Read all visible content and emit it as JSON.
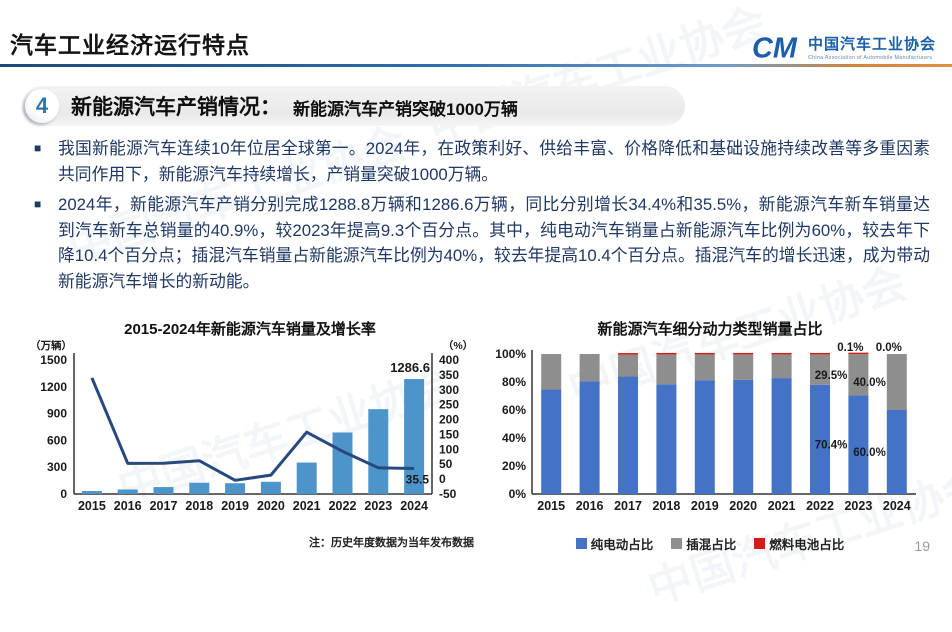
{
  "header": {
    "title": "汽车工业经济运行特点",
    "logo": {
      "mark": "CM",
      "org_cn": "中国汽车工业协会",
      "org_en": "China Association of Automobile Manufacturers"
    }
  },
  "section": {
    "number": "4",
    "title": "新能源汽车产销情况：",
    "subtitle": "新能源汽车产销突破1000万辆"
  },
  "bullets": [
    {
      "marker": "■",
      "text": "我国新能源汽车连续10年位居全球第一。2024年，在政策利好、供给丰富、价格降低和基础设施持续改善等多重因素共同作用下，新能源汽车持续增长，产销量突破1000万辆。"
    },
    {
      "marker": "■",
      "text": "2024年，新能源汽车产销分别完成1288.8万辆和1286.6万辆，同比分别增长34.4%和35.5%，新能源汽车新车销量达到汽车新车总销量的40.9%，较2023年提高9.3个百分点。其中，纯电动汽车销量占新能源汽车比例为60%，较去年下降10.4个百分点；插混汽车销量占新能源汽车比例为40%，较去年提高10.4个百分点。插混汽车的增长迅速，成为带动新能源汽车增长的新动能。"
    }
  ],
  "watermark_text": "中国汽车工业协会",
  "page_number": "19",
  "chart_data": [
    {
      "type": "bar+line",
      "title": "2015-2024年新能源汽车销量及增长率",
      "categories": [
        "2015",
        "2016",
        "2017",
        "2018",
        "2019",
        "2020",
        "2021",
        "2022",
        "2023",
        "2024"
      ],
      "series": [
        {
          "name": "销量（万辆）",
          "chart": "bar",
          "axis": "left",
          "color": "#4d94cb",
          "values": [
            33.1,
            50.7,
            77.7,
            125.6,
            120.6,
            136.7,
            352.1,
            688.7,
            949.5,
            1286.6
          ]
        },
        {
          "name": "增长率（%）",
          "chart": "line",
          "axis": "right",
          "color": "#27497e",
          "values": [
            340.0,
            53.0,
            53.3,
            61.7,
            -4.0,
            13.4,
            157.5,
            93.4,
            37.9,
            35.5
          ]
        }
      ],
      "left_axis": {
        "label": "（万辆）",
        "min": 0,
        "max": 1500,
        "step": 300
      },
      "right_axis": {
        "label": "（%）",
        "min": -50,
        "max": 400,
        "step": 50
      },
      "data_labels": [
        {
          "series": 0,
          "index": 9,
          "text": "1286.6"
        },
        {
          "series": 1,
          "index": 9,
          "text": "35.5"
        }
      ],
      "note": "注：历史年度数据为当年发布数据",
      "grid": false,
      "legend_position": "none"
    },
    {
      "type": "stacked-bar",
      "title": "新能源汽车细分动力类型销量占比",
      "categories": [
        "2015",
        "2016",
        "2017",
        "2018",
        "2019",
        "2020",
        "2021",
        "2022",
        "2023",
        "2024"
      ],
      "series": [
        {
          "name": "纯电动占比",
          "color": "#4472c4",
          "values": [
            74.6,
            80.4,
            83.9,
            78.4,
            81.3,
            81.6,
            82.8,
            78.0,
            70.4,
            60.0
          ]
        },
        {
          "name": "插混占比",
          "color": "#8e8e8e",
          "values": [
            25.4,
            19.6,
            15.7,
            21.3,
            18.4,
            18.1,
            16.9,
            21.7,
            29.5,
            40.0
          ]
        },
        {
          "name": "燃料电池占比",
          "color": "#d02016",
          "values": [
            0.0,
            0.0,
            0.4,
            0.3,
            0.3,
            0.3,
            0.3,
            0.3,
            0.1,
            0.0
          ]
        }
      ],
      "y_axis": {
        "min": 0,
        "max": 100,
        "step": 20,
        "suffix": "%"
      },
      "data_labels": [
        {
          "category": "2023",
          "labels": [
            "70.4%",
            "29.5%",
            "0.1%"
          ]
        },
        {
          "category": "2024",
          "labels": [
            "60.0%",
            "40.0%",
            "0.0%"
          ]
        }
      ],
      "grid": false,
      "legend_position": "bottom"
    }
  ]
}
